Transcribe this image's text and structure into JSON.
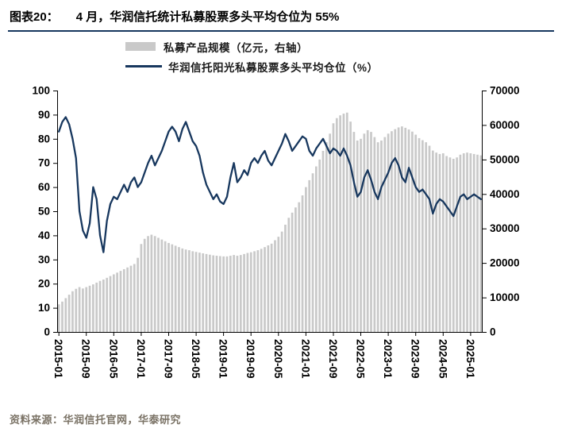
{
  "header": {
    "label": "图表20：",
    "title": "4 月，华润信托统计私募股票多头平均仓位为 55%"
  },
  "legend": [
    {
      "label": "私募产品规模（亿元，右轴）",
      "color": "#c9c9c9",
      "type": "bar"
    },
    {
      "label": "华润信托阳光私募股票多头平均仓位（%）",
      "color": "#17375e",
      "type": "line"
    }
  ],
  "source": "资料来源：华润信托官网，华泰研究",
  "chart_data": {
    "type": "bar+line combo",
    "title": "4 月，华润信托统计私募股票多头平均仓位为 55%",
    "left_axis": {
      "min": 0,
      "max": 100,
      "step": 10,
      "series": "华润信托阳光私募股票多头平均仓位（%）"
    },
    "right_axis": {
      "min": 0,
      "max": 70000,
      "step": 10000,
      "series": "私募产品规模（亿元）"
    },
    "left_tick_labels": [
      "0",
      "10",
      "20",
      "30",
      "40",
      "50",
      "60",
      "70",
      "80",
      "90",
      "100"
    ],
    "right_tick_labels": [
      "0",
      "10000",
      "20000",
      "30000",
      "40000",
      "50000",
      "60000",
      "70000"
    ],
    "x_tick_labels": [
      "2015-01",
      "2015-09",
      "2016-05",
      "2017-01",
      "2017-09",
      "2018-05",
      "2019-01",
      "2019-09",
      "2020-05",
      "2021-01",
      "2021-09",
      "2022-05",
      "2023-01",
      "2023-09",
      "2024-05",
      "2025-01"
    ],
    "x_tick_indices": [
      0,
      8,
      16,
      24,
      32,
      40,
      48,
      56,
      64,
      72,
      80,
      88,
      96,
      104,
      112,
      120
    ],
    "x": [
      "2015-01",
      "2015-02",
      "2015-03",
      "2015-04",
      "2015-05",
      "2015-06",
      "2015-07",
      "2015-08",
      "2015-09",
      "2015-10",
      "2015-11",
      "2015-12",
      "2016-01",
      "2016-02",
      "2016-03",
      "2016-04",
      "2016-05",
      "2016-06",
      "2016-07",
      "2016-08",
      "2016-09",
      "2016-10",
      "2016-11",
      "2016-12",
      "2017-01",
      "2017-02",
      "2017-03",
      "2017-04",
      "2017-05",
      "2017-06",
      "2017-07",
      "2017-08",
      "2017-09",
      "2017-10",
      "2017-11",
      "2017-12",
      "2018-01",
      "2018-02",
      "2018-03",
      "2018-04",
      "2018-05",
      "2018-06",
      "2018-07",
      "2018-08",
      "2018-09",
      "2018-10",
      "2018-11",
      "2018-12",
      "2019-01",
      "2019-02",
      "2019-03",
      "2019-04",
      "2019-05",
      "2019-06",
      "2019-07",
      "2019-08",
      "2019-09",
      "2019-10",
      "2019-11",
      "2019-12",
      "2020-01",
      "2020-02",
      "2020-03",
      "2020-04",
      "2020-05",
      "2020-06",
      "2020-07",
      "2020-08",
      "2020-09",
      "2020-10",
      "2020-11",
      "2020-12",
      "2021-01",
      "2021-02",
      "2021-03",
      "2021-04",
      "2021-05",
      "2021-06",
      "2021-07",
      "2021-08",
      "2021-09",
      "2021-10",
      "2021-11",
      "2021-12",
      "2022-01",
      "2022-02",
      "2022-03",
      "2022-04",
      "2022-05",
      "2022-06",
      "2022-07",
      "2022-08",
      "2022-09",
      "2022-10",
      "2022-11",
      "2022-12",
      "2023-01",
      "2023-02",
      "2023-03",
      "2023-04",
      "2023-05",
      "2023-06",
      "2023-07",
      "2023-08",
      "2023-09",
      "2023-10",
      "2023-11",
      "2023-12",
      "2024-01",
      "2024-02",
      "2024-03",
      "2024-04",
      "2024-05",
      "2024-06",
      "2024-07",
      "2024-08",
      "2024-09",
      "2024-10",
      "2024-11",
      "2024-12",
      "2025-01",
      "2025-02",
      "2025-03",
      "2025-04"
    ],
    "series": [
      {
        "name": "私募产品规模（亿元，右轴）",
        "type": "bar",
        "axis": "right",
        "color": "#c9c9c9",
        "values": [
          8000,
          8800,
          9800,
          10800,
          11800,
          12500,
          13000,
          12600,
          13000,
          13400,
          13800,
          14300,
          14800,
          15200,
          15700,
          16200,
          16700,
          17200,
          17700,
          18200,
          18700,
          19200,
          19700,
          21500,
          25500,
          27000,
          27800,
          28200,
          27800,
          27300,
          26800,
          26300,
          25800,
          25400,
          25000,
          24600,
          24200,
          23900,
          23700,
          23400,
          23200,
          23000,
          22800,
          22600,
          22400,
          22200,
          22100,
          22000,
          21900,
          21900,
          22100,
          22300,
          22100,
          22300,
          22600,
          22900,
          23100,
          23400,
          23700,
          24100,
          24600,
          25100,
          25600,
          26600,
          27600,
          29100,
          31100,
          33100,
          34600,
          36100,
          37600,
          39600,
          42000,
          44000,
          46000,
          48000,
          50000,
          52500,
          55000,
          57500,
          60500,
          62000,
          62800,
          63300,
          63600,
          61000,
          58000,
          55500,
          56000,
          57500,
          58500,
          58000,
          56500,
          55000,
          55500,
          56500,
          57500,
          58200,
          58800,
          59300,
          59600,
          59200,
          58700,
          58100,
          57200,
          56200,
          55600,
          55000,
          54000,
          52600,
          52000,
          51600,
          51800,
          51000,
          50600,
          50200,
          50600,
          51400,
          51800,
          52000,
          51800,
          51600,
          51400,
          51200
        ]
      },
      {
        "name": "华润信托阳光私募股票多头平均仓位（%）",
        "type": "line",
        "axis": "left",
        "color": "#17375e",
        "values": [
          83,
          87,
          89,
          86,
          80,
          72,
          50,
          42,
          39,
          45,
          60,
          55,
          40,
          33,
          46,
          53,
          56,
          55,
          58,
          61,
          58,
          62,
          64,
          60,
          62,
          66,
          70,
          73,
          69,
          72,
          75,
          79,
          83,
          85,
          83,
          79,
          84,
          87,
          83,
          79,
          77,
          73,
          66,
          61,
          58,
          55,
          57,
          54,
          53,
          56,
          64,
          70,
          62,
          64,
          67,
          65,
          70,
          72,
          70,
          73,
          75,
          71,
          69,
          72,
          75,
          78,
          82,
          79,
          75,
          77,
          79,
          81,
          80,
          75,
          73,
          76,
          78,
          80,
          77,
          74,
          76,
          75,
          73,
          76,
          73,
          69,
          62,
          56,
          58,
          64,
          67,
          63,
          58,
          55,
          60,
          63,
          66,
          70,
          72,
          69,
          64,
          62,
          68,
          64,
          60,
          58,
          59,
          57,
          55,
          49,
          53,
          55,
          54,
          52,
          50,
          48,
          52,
          56,
          57,
          55,
          56,
          57,
          56,
          55
        ]
      }
    ]
  }
}
